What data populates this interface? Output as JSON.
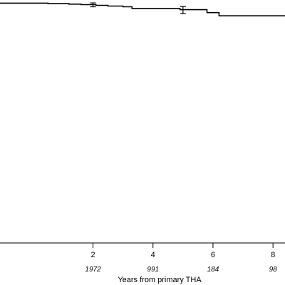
{
  "chart_data": {
    "type": "line",
    "xlabel": "Years from primary THA",
    "xlim": [
      -1.1,
      8.4
    ],
    "ylim": [
      0,
      1
    ],
    "x_ticks": [
      2,
      4,
      6,
      8
    ],
    "x_tick_labels": [
      "2",
      "4",
      "6",
      "8"
    ],
    "risk_table": {
      "x": [
        2,
        4,
        6,
        8
      ],
      "values": [
        "1972",
        "991",
        "184",
        "98"
      ]
    },
    "series": [
      {
        "step": true,
        "x": [
          -1.1,
          0.5,
          1.2,
          1.6,
          2.1,
          2.5,
          3.0,
          3.3,
          4.9,
          5.8,
          6.2,
          8.4
        ],
        "y": [
          0.987,
          0.985,
          0.983,
          0.981,
          0.978,
          0.975,
          0.972,
          0.965,
          0.96,
          0.948,
          0.935,
          0.935
        ],
        "error_bars": [
          {
            "x": 2.0,
            "y": 0.98,
            "lo": 0.972,
            "hi": 0.988
          },
          {
            "x": 5.0,
            "y": 0.959,
            "lo": 0.944,
            "hi": 0.973
          }
        ]
      }
    ]
  }
}
